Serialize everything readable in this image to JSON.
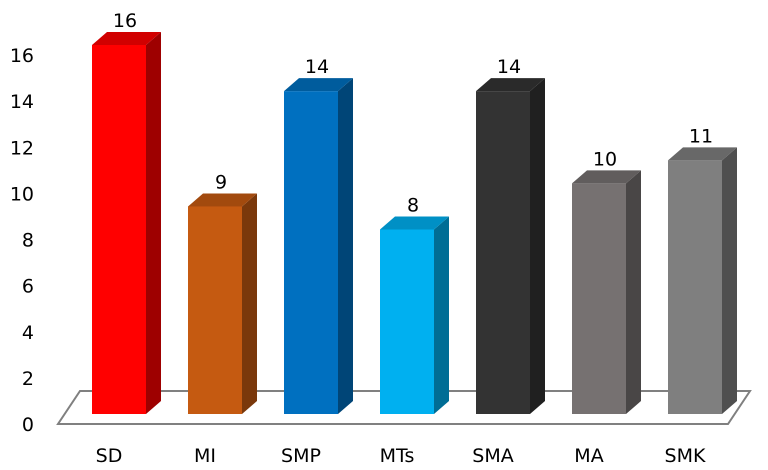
{
  "chart_data": {
    "type": "bar",
    "style": "3d-column",
    "categories": [
      "SD",
      "MI",
      "SMP",
      "MTs",
      "SMA",
      "MA",
      "SMK"
    ],
    "values": [
      16,
      9,
      14,
      8,
      14,
      10,
      11
    ],
    "data_labels": [
      "16",
      "9",
      "14",
      "8",
      "14",
      "10",
      "11"
    ],
    "y_ticks": [
      "0",
      "2",
      "4",
      "6",
      "8",
      "10",
      "12",
      "14",
      "16"
    ],
    "ylim": [
      0,
      16
    ],
    "grid": false,
    "legend": "none",
    "colors": [
      "#ff0000",
      "#c55a11",
      "#0070c0",
      "#00b0f0",
      "#333333",
      "#767171",
      "#7f7f7f"
    ],
    "floor_color": "#ffffff",
    "floor_stroke": "#808080"
  }
}
